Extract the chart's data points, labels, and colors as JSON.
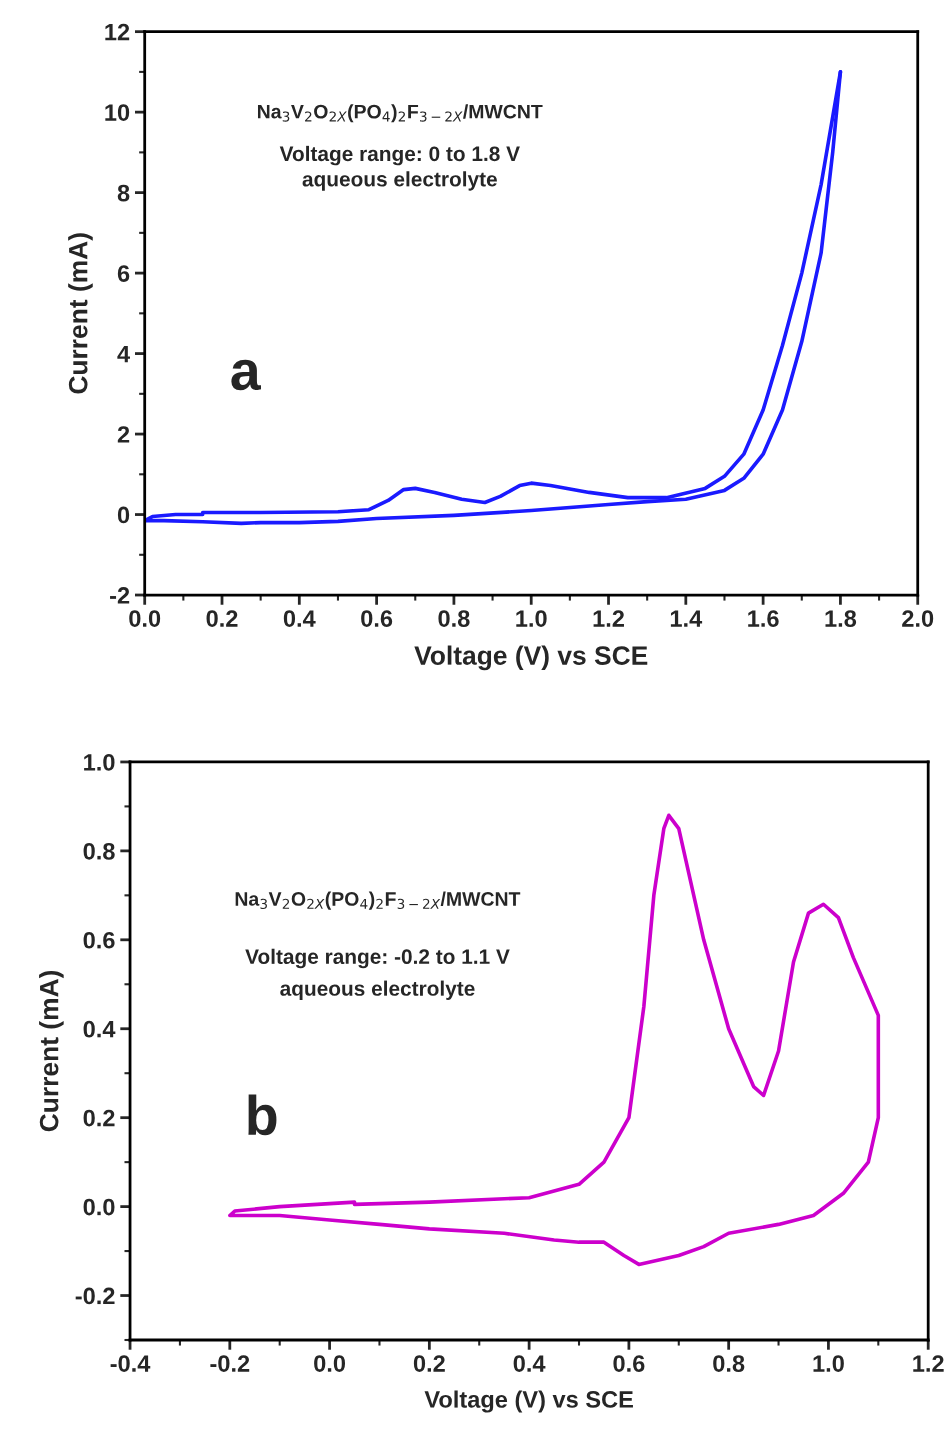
{
  "chart_data": [
    {
      "type": "line",
      "xlabel": "Voltage (V) vs SCE",
      "ylabel": "Current (mA)",
      "annotations": [
        "Na$_{3}$V$_{2}$O$_{2X}$(PO$_{4}$)$_{2}$F$_{3−2X}$/MWCNT",
        "Voltage range: 0 to 1.8 V",
        "aqueous electrolyte",
        "a"
      ],
      "xlim": [
        0,
        2
      ],
      "xticks": [
        {
          "value": 0,
          "label": "0.0"
        },
        0.2,
        0.4,
        0.6,
        0.8,
        {
          "value": 1,
          "label": "1.0"
        },
        1.2,
        1.4,
        1.6,
        1.8,
        {
          "value": 2,
          "label": "2.0"
        }
      ],
      "ylim": [
        -2,
        12
      ],
      "yticks": [
        -2,
        0,
        2,
        4,
        6,
        8,
        10,
        12
      ],
      "grid": false,
      "legend": false,
      "marker": "none",
      "line_style": "solid",
      "series": [
        {
          "color": "#1a1aff",
          "x": [
            0.15,
            0.3,
            0.5,
            0.58,
            0.63,
            0.67,
            0.7,
            0.75,
            0.82,
            0.88,
            0.92,
            0.97,
            1.0,
            1.05,
            1.15,
            1.25,
            1.35,
            1.45,
            1.5,
            1.55,
            1.6,
            1.65,
            1.7,
            1.75,
            1.8
          ],
          "values": [
            0.05,
            0.05,
            0.07,
            0.12,
            0.35,
            0.62,
            0.65,
            0.55,
            0.38,
            0.3,
            0.45,
            0.72,
            0.78,
            0.72,
            0.55,
            0.42,
            0.42,
            0.65,
            0.95,
            1.5,
            2.6,
            4.2,
            6.0,
            8.2,
            11.0
          ]
        },
        {
          "color": "#1a1aff",
          "x": [
            1.8,
            1.78,
            1.75,
            1.7,
            1.65,
            1.6,
            1.55,
            1.5,
            1.4,
            1.3,
            1.2,
            1.0,
            0.8,
            0.6,
            0.5,
            0.4,
            0.3,
            0.25,
            0.15,
            0.05,
            0.0
          ],
          "values": [
            11.0,
            9.0,
            6.5,
            4.3,
            2.6,
            1.5,
            0.9,
            0.6,
            0.38,
            0.32,
            0.25,
            0.1,
            -0.02,
            -0.1,
            -0.17,
            -0.2,
            -0.2,
            -0.22,
            -0.18,
            -0.15,
            -0.15
          ]
        },
        {
          "color": "#1a1aff",
          "x": [
            0.0,
            0.02,
            0.08,
            0.15
          ],
          "values": [
            -0.15,
            -0.05,
            0.0,
            0.0
          ]
        }
      ]
    },
    {
      "type": "line",
      "xlabel": "Voltage (V) vs SCE",
      "ylabel": "Current (mA)",
      "annotations": [
        "Na$_{3}$V$_{2}$O$_{2X}$(PO$_{4}$)$_{2}$F$_{3−2X}$/MWCNT",
        "Voltage range: -0.2 to 1.1 V",
        "aqueous electrolyte",
        "b"
      ],
      "xlim": [
        -0.4,
        1.2
      ],
      "xticks": [
        -0.4,
        -0.2,
        {
          "value": 0,
          "label": "0.0"
        },
        0.2,
        0.4,
        0.6,
        0.8,
        {
          "value": 1,
          "label": "1.0"
        },
        1.2
      ],
      "ylim": [
        -0.3,
        1
      ],
      "yticks": [
        -0.2,
        {
          "value": 0,
          "label": "0.0"
        },
        0.2,
        0.4,
        0.6,
        0.8,
        {
          "value": 1,
          "label": "1.0"
        }
      ],
      "grid": false,
      "legend": false,
      "marker": "none",
      "line_style": "solid",
      "series": [
        {
          "color": "#cc00cc",
          "x": [
            0.05,
            0.2,
            0.4,
            0.5,
            0.55,
            0.6,
            0.63,
            0.65,
            0.67,
            0.68,
            0.7,
            0.75,
            0.8,
            0.85,
            0.87,
            0.9,
            0.93,
            0.96,
            0.99,
            1.02,
            1.05,
            1.1,
            1.1,
            1.08,
            1.03,
            0.97,
            0.9,
            0.8,
            0.75,
            0.7,
            0.62,
            0.59,
            0.55,
            0.5,
            0.45,
            0.35,
            0.2,
            0.1,
            0.0,
            -0.1,
            -0.2,
            -0.19,
            -0.1,
            0.05
          ],
          "values": [
            0.005,
            0.01,
            0.02,
            0.05,
            0.1,
            0.2,
            0.45,
            0.7,
            0.85,
            0.88,
            0.85,
            0.6,
            0.4,
            0.27,
            0.25,
            0.35,
            0.55,
            0.66,
            0.68,
            0.65,
            0.56,
            0.43,
            0.2,
            0.1,
            0.03,
            -0.02,
            -0.04,
            -0.06,
            -0.09,
            -0.11,
            -0.13,
            -0.11,
            -0.08,
            -0.08,
            -0.075,
            -0.06,
            -0.05,
            -0.04,
            -0.03,
            -0.02,
            -0.02,
            -0.01,
            0.0,
            0.01
          ]
        }
      ]
    }
  ]
}
